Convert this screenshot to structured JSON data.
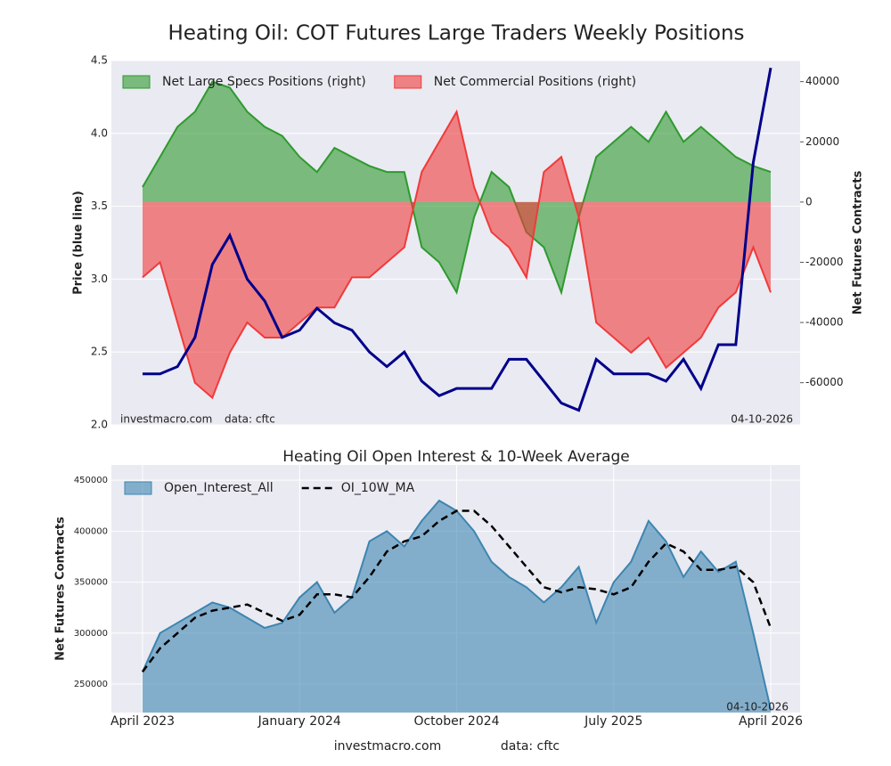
{
  "title": "Heating Oil: COT Futures Large Traders Weekly Positions",
  "chart_data": [
    {
      "type": "combo",
      "x": [
        "2023-04",
        "2023-05",
        "2023-06",
        "2023-07",
        "2023-08",
        "2023-09",
        "2023-10",
        "2023-11",
        "2023-12",
        "2024-01",
        "2024-02",
        "2024-03",
        "2024-04",
        "2024-05",
        "2024-06",
        "2024-07",
        "2024-08",
        "2024-09",
        "2024-10",
        "2024-11",
        "2024-12",
        "2025-01",
        "2025-02",
        "2025-03",
        "2025-04",
        "2025-05",
        "2025-06",
        "2025-07",
        "2025-08",
        "2025-09",
        "2025-10",
        "2025-11",
        "2025-12",
        "2026-01",
        "2026-02",
        "2026-03",
        "2026-04"
      ],
      "ylabel": "Price (blue line)",
      "y2label": "Net Futures Contracts",
      "ylim": [
        2.0,
        4.5
      ],
      "yticks": [
        {
          "value": 2.0,
          "label": "2.0"
        },
        2.5,
        {
          "value": 3.0,
          "label": "3.0"
        },
        3.5,
        {
          "value": 4.0,
          "label": "4.0"
        },
        4.5
      ],
      "y2lim": [
        -74000,
        47000
      ],
      "y2ticks": [
        -60000,
        -40000,
        -20000,
        0,
        20000,
        40000
      ],
      "grid": true,
      "series": [
        {
          "name": "Net Large Specs Positions (right)",
          "type": "area",
          "axis": "y2",
          "color": "#2e9a2e",
          "values": [
            5000,
            15000,
            25000,
            30000,
            40000,
            38000,
            30000,
            25000,
            22000,
            15000,
            10000,
            18000,
            15000,
            12000,
            10000,
            10000,
            -15000,
            -20000,
            -30000,
            -5000,
            10000,
            5000,
            -10000,
            -15000,
            -30000,
            -5000,
            15000,
            20000,
            25000,
            20000,
            30000,
            20000,
            25000,
            20000,
            15000,
            12000,
            10000
          ]
        },
        {
          "name": "Net Commercial Positions (right)",
          "type": "area",
          "axis": "y2",
          "color": "#f03a3a",
          "values": [
            -25000,
            -20000,
            -40000,
            -60000,
            -65000,
            -50000,
            -40000,
            -45000,
            -45000,
            -40000,
            -35000,
            -35000,
            -25000,
            -25000,
            -20000,
            -15000,
            10000,
            20000,
            30000,
            5000,
            -10000,
            -15000,
            -25000,
            10000,
            15000,
            -5000,
            -40000,
            -45000,
            -50000,
            -45000,
            -55000,
            -50000,
            -45000,
            -35000,
            -30000,
            -15000,
            -30000
          ]
        },
        {
          "type": "line",
          "color": "#00008b",
          "values": [
            2.35,
            2.35,
            2.4,
            2.6,
            3.1,
            3.3,
            3.0,
            2.85,
            2.6,
            2.65,
            2.8,
            2.7,
            2.65,
            2.5,
            2.4,
            2.5,
            2.3,
            2.2,
            2.25,
            2.25,
            2.25,
            2.45,
            2.45,
            2.3,
            2.15,
            2.1,
            2.45,
            2.35,
            2.35,
            2.35,
            2.3,
            2.45,
            2.25,
            2.55,
            2.55,
            3.8,
            4.45
          ]
        }
      ],
      "source": "investmacro.com",
      "data_label": "data: cftc",
      "date": "04-10-2026"
    },
    {
      "type": "area",
      "title": "Heating Oil Open Interest & 10-Week Average",
      "x": [
        "2023-04",
        "2023-05",
        "2023-06",
        "2023-07",
        "2023-08",
        "2023-09",
        "2023-10",
        "2023-11",
        "2023-12",
        "2024-01",
        "2024-02",
        "2024-03",
        "2024-04",
        "2024-05",
        "2024-06",
        "2024-07",
        "2024-08",
        "2024-09",
        "2024-10",
        "2024-11",
        "2024-12",
        "2025-01",
        "2025-02",
        "2025-03",
        "2025-04",
        "2025-05",
        "2025-06",
        "2025-07",
        "2025-08",
        "2025-09",
        "2025-10",
        "2025-11",
        "2025-12",
        "2026-01",
        "2026-02",
        "2026-03",
        "2026-04"
      ],
      "xticks": [
        {
          "value": "2023-04",
          "label": "April 2023"
        },
        {
          "value": "2024-01",
          "label": "January 2024"
        },
        {
          "value": "2024-10",
          "label": "October 2024"
        },
        {
          "value": "2025-07",
          "label": "July 2025"
        },
        {
          "value": "2026-04",
          "label": "April 2026"
        }
      ],
      "ylabel": "Net Futures Contracts",
      "ylim": [
        222000,
        465000
      ],
      "yticks": [
        250000,
        300000,
        350000,
        400000,
        450000
      ],
      "grid": true,
      "series": [
        {
          "name": "Open_Interest_All",
          "type": "area",
          "color": "#3d85b0",
          "values": [
            262000,
            300000,
            310000,
            320000,
            330000,
            325000,
            315000,
            305000,
            310000,
            335000,
            350000,
            320000,
            335000,
            390000,
            400000,
            385000,
            410000,
            430000,
            420000,
            400000,
            370000,
            355000,
            345000,
            330000,
            345000,
            365000,
            310000,
            350000,
            370000,
            410000,
            390000,
            355000,
            380000,
            360000,
            370000,
            300000,
            225000
          ]
        },
        {
          "name": "OI_10W_MA",
          "type": "dashed",
          "color": "#000000",
          "values": [
            262000,
            285000,
            300000,
            315000,
            322000,
            325000,
            328000,
            320000,
            312000,
            318000,
            338000,
            338000,
            335000,
            355000,
            380000,
            390000,
            395000,
            410000,
            420000,
            420000,
            405000,
            385000,
            365000,
            345000,
            340000,
            345000,
            343000,
            338000,
            345000,
            370000,
            388000,
            380000,
            362000,
            362000,
            365000,
            350000,
            305000
          ]
        }
      ],
      "date": "04-10-2026",
      "source": "investmacro.com",
      "data_label": "data: cftc"
    }
  ]
}
